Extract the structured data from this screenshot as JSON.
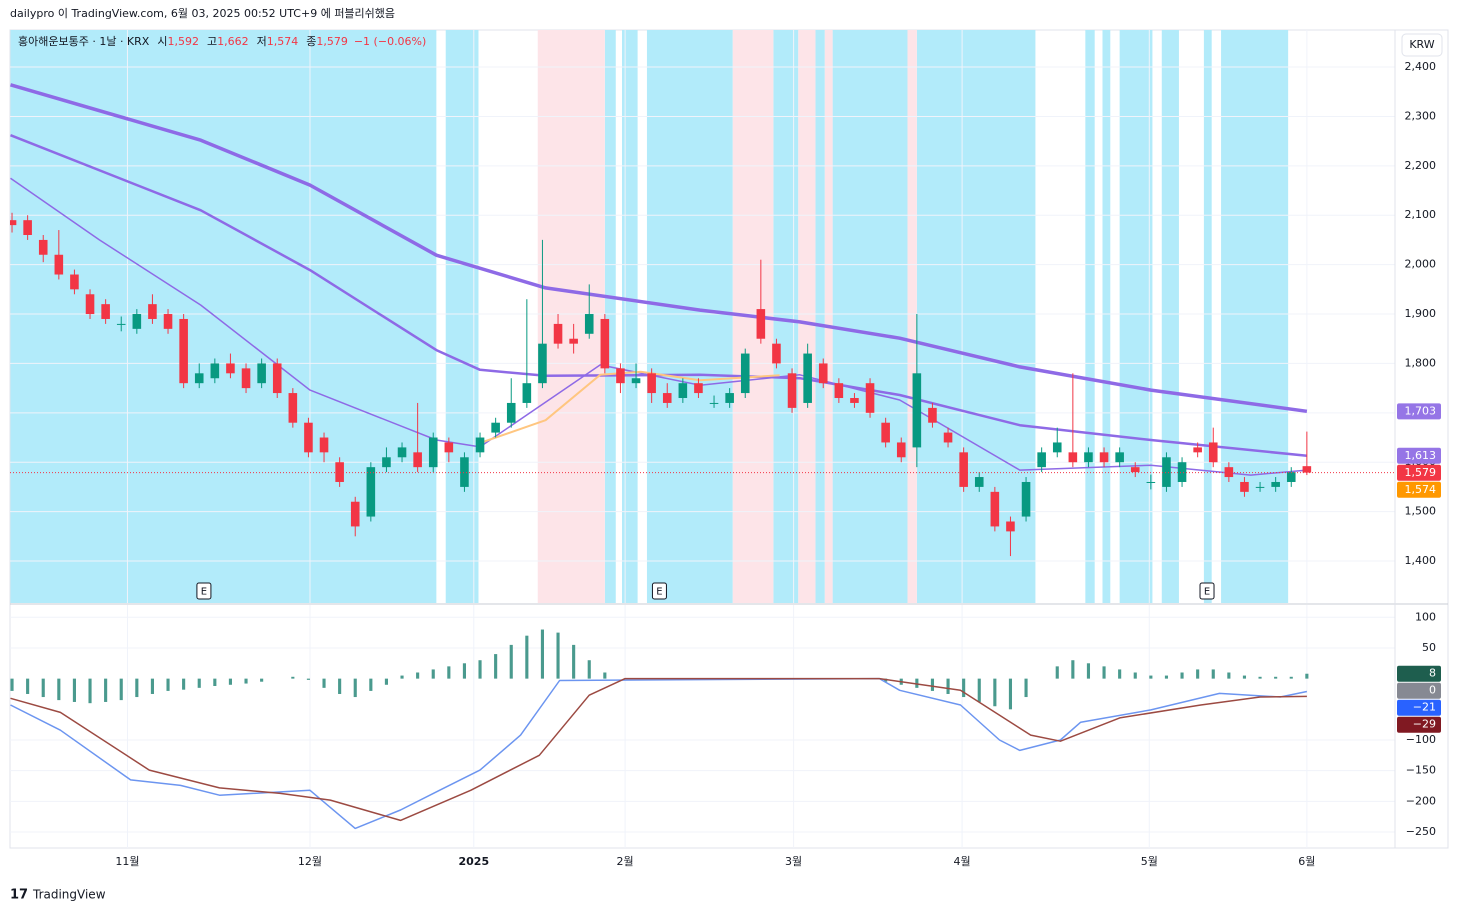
{
  "header": {
    "title": "dailypro 이 TradingView.com, 6월 03, 2025 00:52 UTC+9 에 퍼블리쉬했음"
  },
  "currency": "KRW",
  "footer": {
    "logo": "TradingView"
  },
  "chart_data": [
    {
      "type": "candlestick",
      "legend": {
        "symbol": "홍아해운보통주 · 1날 · KRX",
        "ohlc_labels": [
          "시",
          "고",
          "저",
          "종"
        ],
        "ohlc_values": [
          1592,
          1662,
          1574,
          1579
        ],
        "ohlc_value_labels": [
          "1,592",
          "1,662",
          "1,574",
          "1,579"
        ],
        "change": "−1 (−0.06%)"
      },
      "x": [
        0,
        1,
        2,
        3,
        4,
        5,
        6,
        7,
        8,
        9,
        10,
        11,
        12,
        13,
        14,
        15,
        16,
        17,
        18,
        19,
        20,
        21,
        22,
        23,
        24,
        25,
        26,
        27,
        28,
        29,
        30,
        31,
        32,
        33,
        34,
        35,
        36,
        37,
        38,
        39,
        40,
        41,
        42,
        43,
        44,
        45,
        46,
        47,
        48,
        49,
        50,
        51,
        52,
        53,
        54,
        55,
        56,
        57,
        58,
        59,
        60,
        61,
        62,
        63,
        64,
        65,
        66,
        67,
        68,
        69,
        70,
        71,
        72,
        73,
        74,
        75,
        76,
        77,
        78,
        79,
        80,
        81,
        82,
        83
      ],
      "open": [
        2090,
        2090,
        2050,
        2020,
        1980,
        1940,
        1920,
        1880,
        1870,
        1920,
        1900,
        1890,
        1760,
        1770,
        1800,
        1790,
        1760,
        1800,
        1740,
        1680,
        1650,
        1600,
        1520,
        1490,
        1590,
        1610,
        1620,
        1590,
        1640,
        1550,
        1620,
        1660,
        1680,
        1720,
        1760,
        1880,
        1850,
        1860,
        1890,
        1790,
        1760,
        1780,
        1740,
        1730,
        1760,
        1720,
        1720,
        1740,
        1910,
        1840,
        1780,
        1720,
        1800,
        1760,
        1730,
        1760,
        1680,
        1640,
        1630,
        1710,
        1660,
        1620,
        1550,
        1540,
        1480,
        1490,
        1590,
        1620,
        1620,
        1600,
        1620,
        1600,
        1590,
        1560,
        1550,
        1560,
        1630,
        1640,
        1590,
        1560,
        1550,
        1550,
        1560,
        1592
      ],
      "high": [
        2105,
        2100,
        2060,
        2070,
        1990,
        1950,
        1930,
        1895,
        1910,
        1940,
        1910,
        1900,
        1800,
        1810,
        1820,
        1800,
        1810,
        1810,
        1750,
        1690,
        1660,
        1610,
        1530,
        1600,
        1630,
        1640,
        1720,
        1660,
        1650,
        1620,
        1660,
        1690,
        1770,
        1930,
        2050,
        1900,
        1880,
        1960,
        1900,
        1800,
        1800,
        1790,
        1760,
        1770,
        1770,
        1735,
        1750,
        1830,
        2010,
        1850,
        1790,
        1840,
        1810,
        1770,
        1740,
        1770,
        1690,
        1650,
        1900,
        1720,
        1670,
        1630,
        1580,
        1550,
        1490,
        1570,
        1630,
        1670,
        1780,
        1630,
        1630,
        1630,
        1600,
        1575,
        1620,
        1610,
        1640,
        1670,
        1600,
        1570,
        1560,
        1570,
        1590,
        1662
      ],
      "low": [
        2065,
        2050,
        2005,
        1970,
        1940,
        1890,
        1880,
        1865,
        1860,
        1880,
        1860,
        1750,
        1750,
        1760,
        1770,
        1740,
        1750,
        1730,
        1670,
        1610,
        1600,
        1550,
        1450,
        1480,
        1580,
        1600,
        1580,
        1580,
        1600,
        1540,
        1610,
        1650,
        1670,
        1710,
        1750,
        1830,
        1820,
        1850,
        1780,
        1740,
        1750,
        1720,
        1710,
        1720,
        1730,
        1710,
        1710,
        1730,
        1840,
        1790,
        1700,
        1710,
        1750,
        1720,
        1710,
        1690,
        1630,
        1600,
        1590,
        1670,
        1630,
        1540,
        1540,
        1460,
        1410,
        1480,
        1580,
        1610,
        1590,
        1590,
        1590,
        1590,
        1570,
        1545,
        1540,
        1550,
        1610,
        1590,
        1560,
        1530,
        1540,
        1540,
        1550,
        1574
      ],
      "close": [
        2080,
        2060,
        2020,
        1980,
        1950,
        1900,
        1890,
        1880,
        1900,
        1890,
        1870,
        1760,
        1780,
        1800,
        1780,
        1750,
        1800,
        1740,
        1680,
        1620,
        1620,
        1560,
        1470,
        1590,
        1610,
        1630,
        1590,
        1650,
        1620,
        1610,
        1650,
        1680,
        1720,
        1760,
        1840,
        1840,
        1840,
        1900,
        1790,
        1760,
        1770,
        1740,
        1720,
        1760,
        1740,
        1720,
        1740,
        1820,
        1850,
        1800,
        1710,
        1820,
        1760,
        1730,
        1720,
        1700,
        1640,
        1610,
        1780,
        1680,
        1640,
        1550,
        1570,
        1470,
        1460,
        1560,
        1620,
        1640,
        1600,
        1620,
        1600,
        1620,
        1580,
        1560,
        1610,
        1600,
        1620,
        1600,
        1570,
        1540,
        1550,
        1560,
        1580,
        1579
      ],
      "up_color": "#089981",
      "down_color": "#f23645",
      "series": [
        {
          "color": "#8e6ae6",
          "line_width": 3.5,
          "x": [
            -0.1,
            12.1,
            19.1,
            27.2,
            34.2,
            44.1,
            50.5,
            56.9,
            64.6,
            73,
            83
          ],
          "values": [
            2364,
            2252,
            2161,
            2019,
            1953,
            1908,
            1884,
            1851,
            1793,
            1746,
            1703
          ]
        },
        {
          "color": "#8e6ae6",
          "line_width": 2.5,
          "x": [
            -0.1,
            12.1,
            19.1,
            27.2,
            30,
            34.2,
            44.1,
            50.5,
            56.9,
            64.6,
            73,
            83
          ],
          "values": [
            2262,
            2110,
            1989,
            1827,
            1787,
            1775,
            1777,
            1770,
            1736,
            1675,
            1645,
            1613
          ]
        },
        {
          "color": "#8e6ae6",
          "line_width": 1.5,
          "x": [
            -0.1,
            5.6,
            12.1,
            19.1,
            27.2,
            30,
            37.7,
            44.1,
            50.5,
            56.9,
            64.6,
            73,
            79.4,
            83
          ],
          "values": [
            2175,
            2050,
            1918,
            1746,
            1645,
            1631,
            1797,
            1756,
            1777,
            1726,
            1584,
            1594,
            1574,
            1584
          ]
        },
        {
          "color": "#ffc680",
          "line_width": 2,
          "x": [
            30,
            34.2,
            37.7,
            40.3,
            44.1,
            49.2
          ],
          "values": [
            1639,
            1685,
            1777,
            1783,
            1766,
            1776
          ]
        }
      ],
      "regions": [
        {
          "color": "#b2ebfa",
          "x": [
            -0.1,
            27.2
          ]
        },
        {
          "color": "#b2ebfa",
          "x": [
            27.8,
            29.9
          ]
        },
        {
          "color": "#b2ebfa",
          "x": [
            38,
            38.7
          ]
        },
        {
          "color": "#b2ebfa",
          "x": [
            39.1,
            40.1
          ]
        },
        {
          "color": "#b2ebfa",
          "x": [
            40.7,
            46.2
          ]
        },
        {
          "color": "#b2ebfa",
          "x": [
            48.8,
            50.4
          ]
        },
        {
          "color": "#b2ebfa",
          "x": [
            51.5,
            52.1
          ]
        },
        {
          "color": "#b2ebfa",
          "x": [
            52.6,
            57.4
          ]
        },
        {
          "color": "#b2ebfa",
          "x": [
            58,
            65.6
          ]
        },
        {
          "color": "#b2ebfa",
          "x": [
            68.8,
            69.4
          ]
        },
        {
          "color": "#b2ebfa",
          "x": [
            69.9,
            70.4
          ]
        },
        {
          "color": "#b2ebfa",
          "x": [
            71,
            73.1
          ]
        },
        {
          "color": "#b2ebfa",
          "x": [
            73.7,
            74.8
          ]
        },
        {
          "color": "#b2ebfa",
          "x": [
            76.4,
            76.9
          ]
        },
        {
          "color": "#b2ebfa",
          "x": [
            77.5,
            81.8
          ]
        },
        {
          "color": "#fde4e8",
          "x": [
            33.7,
            38
          ]
        },
        {
          "color": "#fde4e8",
          "x": [
            46.2,
            48.8
          ]
        },
        {
          "color": "#fde4e8",
          "x": [
            50.4,
            51.5
          ]
        },
        {
          "color": "#fde4e8",
          "x": [
            52.1,
            52.6
          ]
        },
        {
          "color": "#fde4e8",
          "x": [
            57.4,
            58
          ]
        }
      ],
      "events": {
        "label": "E",
        "x": [
          12.3,
          41.5,
          76.6
        ]
      },
      "xlim": [
        -0.13,
        88.65
      ],
      "xticks": [
        {
          "value": 7.4,
          "label": "11월"
        },
        {
          "value": 19.1,
          "label": "12월"
        },
        {
          "value": 29.6,
          "label": "2025"
        },
        {
          "value": 39.3,
          "label": "2월"
        },
        {
          "value": 50.1,
          "label": "3월"
        },
        {
          "value": 60.9,
          "label": "4월"
        },
        {
          "value": 72.9,
          "label": "5월"
        },
        {
          "value": 83,
          "label": "6월"
        }
      ],
      "ylim": [
        1315,
        2475
      ],
      "yticks": [
        {
          "value": 1400,
          "label": "1,400"
        },
        {
          "value": 1500,
          "label": "1,500"
        },
        {
          "value": 1600,
          "label": "1,600"
        },
        {
          "value": 1700,
          "label": "1,700"
        },
        {
          "value": 1800,
          "label": "1,800"
        },
        {
          "value": 1900,
          "label": "1,900"
        },
        {
          "value": 2000,
          "label": "2,000"
        },
        {
          "value": 2100,
          "label": "2,100"
        },
        {
          "value": 2200,
          "label": "2,200"
        },
        {
          "value": 2300,
          "label": "2,300"
        },
        {
          "value": 2400,
          "label": "2,400"
        }
      ],
      "grid": true,
      "last_price_line": true,
      "price_labels": [
        {
          "value": 1703,
          "label": "1,703",
          "color": "#9575e6"
        },
        {
          "value": 1613,
          "label": "1,613",
          "color": "#9575e6"
        },
        {
          "value": 1579,
          "label": "1,579",
          "color": "#f23645"
        },
        {
          "value": 1574,
          "label": "1,574",
          "color": "#ff9800"
        }
      ]
    },
    {
      "type": "macd",
      "x": [
        0,
        1,
        2,
        3,
        4,
        5,
        6,
        7,
        8,
        9,
        10,
        11,
        12,
        13,
        14,
        15,
        16,
        17,
        18,
        19,
        20,
        21,
        22,
        23,
        24,
        25,
        26,
        27,
        28,
        29,
        30,
        31,
        32,
        33,
        34,
        35,
        36,
        37,
        38,
        39,
        40,
        41,
        42,
        43,
        44,
        45,
        46,
        47,
        48,
        49,
        50,
        51,
        52,
        53,
        54,
        55,
        56,
        57,
        58,
        59,
        60,
        61,
        62,
        63,
        64,
        65,
        66,
        67,
        68,
        69,
        70,
        71,
        72,
        73,
        74,
        75,
        76,
        77,
        78,
        79,
        80,
        81,
        82,
        83
      ],
      "histogram": [
        -20,
        -25,
        -30,
        -35,
        -38,
        -40,
        -38,
        -35,
        -30,
        -25,
        -20,
        -18,
        -15,
        -12,
        -10,
        -8,
        -5,
        0,
        3,
        -2,
        -15,
        -25,
        -30,
        -20,
        -10,
        5,
        10,
        15,
        20,
        25,
        30,
        40,
        55,
        70,
        80,
        75,
        55,
        30,
        10,
        0,
        0,
        0,
        0,
        0,
        0,
        0,
        0,
        0,
        0,
        0,
        0,
        0,
        0,
        0,
        0,
        0,
        -5,
        -10,
        -15,
        -20,
        -25,
        -30,
        -38,
        -45,
        -50,
        -30,
        0,
        20,
        30,
        25,
        20,
        15,
        10,
        5,
        5,
        10,
        15,
        15,
        10,
        5,
        3,
        3,
        3,
        8
      ],
      "histogram_color": "#4a9a8e",
      "series": [
        {
          "color": "#6c95f0",
          "x": [
            -0.1,
            3.1,
            7.6,
            10.8,
            13.3,
            19.1,
            22,
            24.9,
            27.4,
            30,
            32.6,
            35.1,
            55.6,
            56.9,
            60.8,
            63.3,
            64.6,
            67.2,
            68.5,
            73,
            77.4,
            81.3,
            83
          ],
          "values": [
            -43,
            -84,
            -165,
            -174,
            -190,
            -182,
            -244,
            -214,
            -182,
            -149,
            -92,
            -3,
            0,
            -19,
            -43,
            -100,
            -117,
            -100,
            -71,
            -51,
            -24,
            -30,
            -21
          ]
        },
        {
          "color": "#9c4a42",
          "x": [
            -0.1,
            3.1,
            8.8,
            13.3,
            17.2,
            20.4,
            24.9,
            29.4,
            33.8,
            37,
            39.3,
            55.6,
            60.8,
            65.3,
            67.2,
            71,
            76.2,
            80,
            83
          ],
          "values": [
            -32,
            -55,
            -149,
            -178,
            -187,
            -198,
            -231,
            -182,
            -125,
            -27,
            0,
            0,
            -19,
            -92,
            -102,
            -64,
            -43,
            -30,
            -29
          ]
        }
      ],
      "xlim": [
        -0.13,
        88.65
      ],
      "ylim": [
        -276,
        120
      ],
      "yticks": [
        100,
        50,
        {
          "value": -100,
          "label": "−100"
        },
        {
          "value": -150,
          "label": "−150"
        },
        {
          "value": -200,
          "label": "−200"
        },
        {
          "value": -250,
          "label": "−250"
        }
      ],
      "grid": true,
      "price_labels": [
        {
          "value": 8,
          "label": "8",
          "color": "#1e5e4e"
        },
        {
          "value": 0,
          "label": "0",
          "color": "#868993"
        },
        {
          "value": -21,
          "label": "−21",
          "color": "#2962ff"
        },
        {
          "value": -29,
          "label": "−29",
          "color": "#801922"
        }
      ]
    }
  ]
}
